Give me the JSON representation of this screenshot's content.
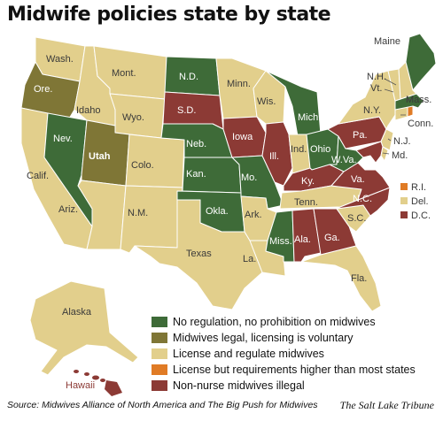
{
  "title": "Midwife policies state by state",
  "legend": [
    {
      "label": "No regulation, no prohibition on midwives",
      "color": "#3e6b38"
    },
    {
      "label": "Midwives legal, licensing is voluntary",
      "color": "#7f7636"
    },
    {
      "label": "License and regulate midwives",
      "color": "#e2cf8c"
    },
    {
      "label": "License but requirements higher than most states",
      "color": "#e07b25"
    },
    {
      "label": "Non-nurse midwives illegal",
      "color": "#8c3a35"
    }
  ],
  "small_states": [
    {
      "label": "R.I.",
      "color": "#e07b25"
    },
    {
      "label": "Del.",
      "color": "#e2cf8c"
    },
    {
      "label": "D.C.",
      "color": "#8c3a35"
    }
  ],
  "states": {
    "wash": "Wash.",
    "ore": "Ore.",
    "calif": "Calif.",
    "nev": "Nev.",
    "idaho": "Idaho",
    "mont": "Mont.",
    "wyo": "Wyo.",
    "utah": "Utah",
    "ariz": "Ariz.",
    "colo": "Colo.",
    "nm": "N.M.",
    "nd": "N.D.",
    "sd": "S.D.",
    "neb": "Neb.",
    "kan": "Kan.",
    "okla": "Okla.",
    "texas": "Texas",
    "minn": "Minn.",
    "iowa": "Iowa",
    "mo": "Mo.",
    "ark": "Ark.",
    "la": "La.",
    "wis": "Wis.",
    "ill": "Ill.",
    "mich": "Mich.",
    "ind": "Ind.",
    "ohio": "Ohio",
    "ky": "Ky.",
    "tenn": "Tenn.",
    "miss": "Miss.",
    "ala": "Ala.",
    "ga": "Ga.",
    "fla": "Fla.",
    "sc": "S.C.",
    "nc": "N.C.",
    "va": "Va.",
    "wva": "W.Va.",
    "pa": "Pa.",
    "ny": "N.Y.",
    "nj": "N.J.",
    "md": "Md.",
    "conn": "Conn.",
    "mass": "Mass.",
    "vt": "Vt.",
    "nh": "N.H.",
    "maine": "Maine",
    "alaska": "Alaska",
    "hawaii": "Hawaii"
  },
  "source": "Source: Midwives Alliance of North America and The Big Push for Midwives",
  "credit": "The Salt Lake Tribune"
}
